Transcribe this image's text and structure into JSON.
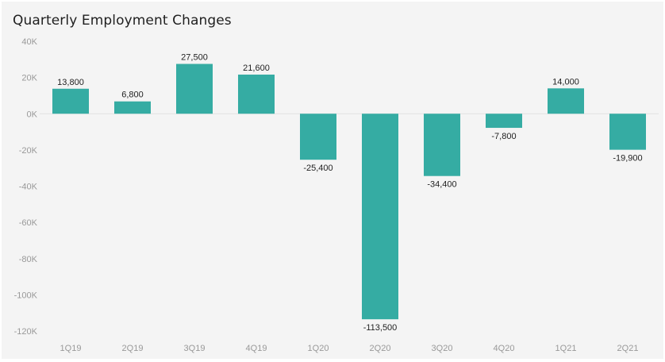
{
  "chart_data": {
    "type": "bar",
    "title": "Quarterly Employment Changes",
    "xlabel": "",
    "ylabel": "",
    "categories": [
      "1Q19",
      "2Q19",
      "3Q19",
      "4Q19",
      "1Q20",
      "2Q20",
      "3Q20",
      "4Q20",
      "1Q21",
      "2Q21"
    ],
    "values": [
      13800,
      6800,
      27500,
      21600,
      -25400,
      -113500,
      -34400,
      -7800,
      14000,
      -19900
    ],
    "value_labels": [
      "13,800",
      "6,800",
      "27,500",
      "21,600",
      "-25,400",
      "-113,500",
      "-34,400",
      "-7,800",
      "14,000",
      "-19,900"
    ],
    "ylim": [
      -120000,
      40000
    ],
    "yticks": [
      40000,
      20000,
      0,
      -20000,
      -40000,
      -60000,
      -80000,
      -100000,
      -120000
    ],
    "ytick_labels": [
      "40K",
      "20K",
      "0K",
      "-20K",
      "-40K",
      "-60K",
      "-80K",
      "-100K",
      "-120K"
    ],
    "grid": false,
    "legend": "none",
    "colors": {
      "bar": "#35aca3",
      "zero_line": "#e2e2e2",
      "tick_label": "#999999",
      "value_label": "#222222",
      "background": "#f4f4f4"
    }
  }
}
